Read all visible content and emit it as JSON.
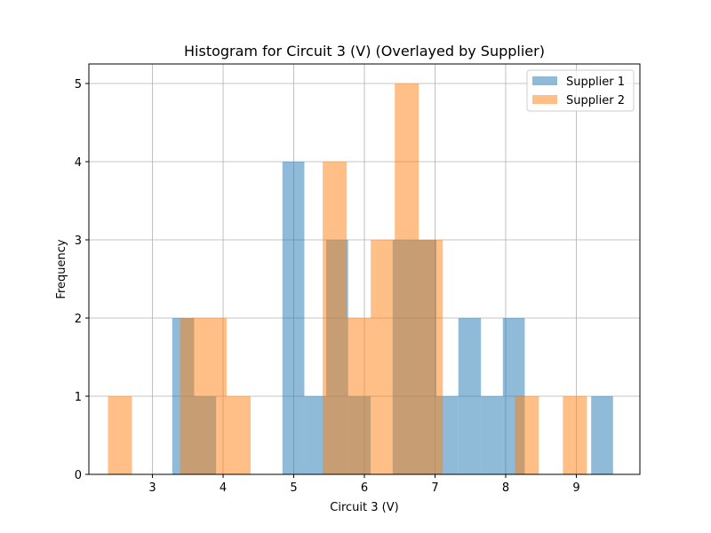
{
  "chart_data": {
    "type": "histogram",
    "title": "Histogram for Circuit 3 (V) (Overlayed by Supplier)",
    "xlabel": "Circuit 3 (V)",
    "ylabel": "Frequency",
    "xlim": [
      2.1,
      9.9
    ],
    "ylim": [
      0,
      5.25
    ],
    "xticks": [
      3,
      4,
      5,
      6,
      7,
      8,
      9
    ],
    "yticks": [
      0,
      1,
      2,
      3,
      4,
      5
    ],
    "grid": true,
    "legend_position": "top-right",
    "series": [
      {
        "name": "Supplier 1",
        "color": "#1f77b4",
        "opacity": 0.5,
        "bins": [
          {
            "x0": 3.28,
            "x1": 3.59,
            "count": 2
          },
          {
            "x0": 3.59,
            "x1": 3.9,
            "count": 1
          },
          {
            "x0": 4.84,
            "x1": 5.15,
            "count": 4
          },
          {
            "x0": 5.15,
            "x1": 5.46,
            "count": 1
          },
          {
            "x0": 5.46,
            "x1": 5.77,
            "count": 3
          },
          {
            "x0": 5.77,
            "x1": 6.09,
            "count": 1
          },
          {
            "x0": 6.4,
            "x1": 6.71,
            "count": 3
          },
          {
            "x0": 6.71,
            "x1": 7.02,
            "count": 3
          },
          {
            "x0": 7.02,
            "x1": 7.33,
            "count": 1
          },
          {
            "x0": 7.33,
            "x1": 7.65,
            "count": 2
          },
          {
            "x0": 7.65,
            "x1": 7.96,
            "count": 1
          },
          {
            "x0": 7.96,
            "x1": 8.27,
            "count": 2
          },
          {
            "x0": 9.21,
            "x1": 9.52,
            "count": 1
          }
        ]
      },
      {
        "name": "Supplier 2",
        "color": "#ff7f0e",
        "opacity": 0.5,
        "bins": [
          {
            "x0": 2.37,
            "x1": 2.71,
            "count": 1
          },
          {
            "x0": 3.39,
            "x1": 3.58,
            "count": 2
          },
          {
            "x0": 3.58,
            "x1": 4.05,
            "count": 2
          },
          {
            "x0": 4.05,
            "x1": 4.39,
            "count": 1
          },
          {
            "x0": 5.41,
            "x1": 5.75,
            "count": 4
          },
          {
            "x0": 5.75,
            "x1": 6.09,
            "count": 2
          },
          {
            "x0": 6.09,
            "x1": 6.43,
            "count": 3
          },
          {
            "x0": 6.43,
            "x1": 6.77,
            "count": 5
          },
          {
            "x0": 6.77,
            "x1": 7.11,
            "count": 3
          },
          {
            "x0": 8.13,
            "x1": 8.47,
            "count": 1
          },
          {
            "x0": 8.81,
            "x1": 9.15,
            "count": 1
          }
        ]
      }
    ]
  }
}
